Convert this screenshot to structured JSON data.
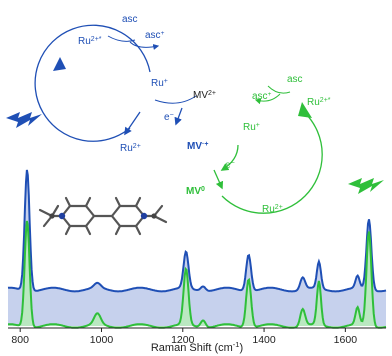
{
  "colors": {
    "blue": "#1f4fb5",
    "blue_fill": "#bcc9ea",
    "green": "#2fbf3a",
    "green_fill": "#b7ecb9",
    "axis": "#222222"
  },
  "cycle_blue": {
    "species": [
      "Ru2+*",
      "Ru+",
      "Ru2+",
      "MV2+",
      "MV•+"
    ],
    "labels": {
      "ru2_star": "Ru",
      "ru2_star_sup": "2+*",
      "ru_plus": "Ru",
      "ru_plus_sup": "+",
      "ru2": "Ru",
      "ru2_sup": "2+",
      "asc": "asc",
      "asc_plus": "asc",
      "asc_plus_sup": "+",
      "electron": "e",
      "electron_sup": "−",
      "mv2": "MV",
      "mv2_sup": "2+",
      "mv_rad": "MV",
      "mv_rad_sup": "·+"
    },
    "icon": "lightning-bolt-icon"
  },
  "cycle_green": {
    "labels": {
      "asc": "asc",
      "asc_plus": "asc",
      "asc_plus_sup": "+",
      "ru2_star": "Ru",
      "ru2_star_sup": "2+*",
      "ru_plus": "Ru",
      "ru_plus_sup": "+",
      "electron": "e",
      "electron_sup": "−",
      "mv0": "MV",
      "mv0_sup": "0",
      "ru2": "Ru",
      "ru2_sup": "2+"
    },
    "icon": "lightning-bolt-icon"
  },
  "molecule": "methyl-viologen-ball-and-stick",
  "chart_data": {
    "type": "line",
    "xlabel": "Raman Shift (cm",
    "xlabel_sup": "-1",
    "xlabel_tail": ")",
    "x_ticks": [
      800,
      1000,
      1200,
      1400,
      1600
    ],
    "xlim": [
      770,
      1700
    ],
    "ylabel": "",
    "series": [
      {
        "color": "#1f4fb5",
        "fill": "#bcc9ea",
        "baseline": 0.3,
        "peaks": [
          [
            817,
            1.0,
            6
          ],
          [
            990,
            0.04,
            8
          ],
          [
            1208,
            0.3,
            6
          ],
          [
            1250,
            0.04,
            6
          ],
          [
            1362,
            0.3,
            6
          ],
          [
            1495,
            0.1,
            6
          ],
          [
            1535,
            0.22,
            5
          ],
          [
            1630,
            0.1,
            5
          ],
          [
            1658,
            0.58,
            6
          ]
        ]
      },
      {
        "color": "#2fbf3a",
        "fill": "#b7ecb9",
        "baseline": 0.0,
        "peaks": [
          [
            817,
            0.88,
            6
          ],
          [
            990,
            0.09,
            8
          ],
          [
            1208,
            0.46,
            6
          ],
          [
            1250,
            0.06,
            6
          ],
          [
            1362,
            0.4,
            6
          ],
          [
            1495,
            0.14,
            6
          ],
          [
            1535,
            0.36,
            5
          ],
          [
            1630,
            0.14,
            5
          ],
          [
            1658,
            0.78,
            6
          ]
        ]
      }
    ],
    "grid": false,
    "legend": "none"
  }
}
